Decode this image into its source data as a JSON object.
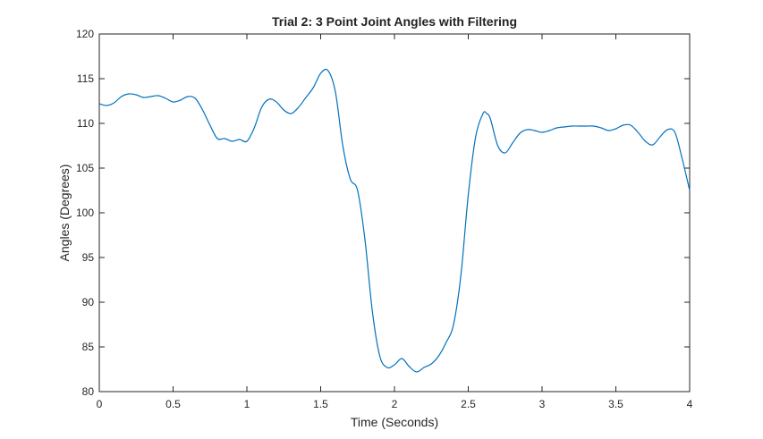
{
  "chart_data": {
    "type": "line",
    "title": "Trial 2: 3 Point Joint Angles with Filtering",
    "xlabel": "Time (Seconds)",
    "ylabel": "Angles (Degrees)",
    "xlim": [
      0,
      4
    ],
    "ylim": [
      80,
      120
    ],
    "xticks": [
      "0",
      "0.5",
      "1",
      "1.5",
      "2",
      "2.5",
      "3",
      "3.5",
      "4"
    ],
    "yticks": [
      "80",
      "85",
      "90",
      "95",
      "100",
      "105",
      "110",
      "115",
      "120"
    ],
    "grid": false,
    "series": [
      {
        "color": "#0072BD",
        "x": [
          0.0,
          0.05,
          0.1,
          0.15,
          0.2,
          0.25,
          0.3,
          0.35,
          0.4,
          0.45,
          0.5,
          0.55,
          0.6,
          0.65,
          0.7,
          0.75,
          0.8,
          0.85,
          0.9,
          0.95,
          1.0,
          1.05,
          1.1,
          1.15,
          1.2,
          1.25,
          1.3,
          1.35,
          1.4,
          1.45,
          1.5,
          1.55,
          1.6,
          1.65,
          1.7,
          1.75,
          1.8,
          1.85,
          1.9,
          1.95,
          2.0,
          2.05,
          2.1,
          2.15,
          2.2,
          2.25,
          2.3,
          2.35,
          2.4,
          2.45,
          2.5,
          2.55,
          2.6,
          2.625,
          2.65,
          2.7,
          2.75,
          2.8,
          2.85,
          2.9,
          2.95,
          3.0,
          3.05,
          3.1,
          3.15,
          3.2,
          3.25,
          3.3,
          3.35,
          3.4,
          3.45,
          3.5,
          3.55,
          3.6,
          3.65,
          3.7,
          3.75,
          3.8,
          3.85,
          3.9,
          3.95,
          4.0
        ],
        "y": [
          112.2,
          112.0,
          112.3,
          113.0,
          113.3,
          113.2,
          112.9,
          113.0,
          113.1,
          112.8,
          112.4,
          112.6,
          113.0,
          112.8,
          111.5,
          109.8,
          108.3,
          108.3,
          108.0,
          108.2,
          108.0,
          109.5,
          111.8,
          112.7,
          112.4,
          111.5,
          111.1,
          111.8,
          112.9,
          114.0,
          115.6,
          115.9,
          113.5,
          107.5,
          103.8,
          102.5,
          97.0,
          89.0,
          84.0,
          82.7,
          83.0,
          83.7,
          82.8,
          82.2,
          82.7,
          83.1,
          84.0,
          85.5,
          87.5,
          93.0,
          102.0,
          108.5,
          111.1,
          111.1,
          110.5,
          107.5,
          106.7,
          107.8,
          108.9,
          109.3,
          109.2,
          109.0,
          109.2,
          109.5,
          109.6,
          109.7,
          109.7,
          109.7,
          109.7,
          109.5,
          109.2,
          109.4,
          109.8,
          109.8,
          109.0,
          108.0,
          107.6,
          108.5,
          109.3,
          109.0,
          106.0,
          102.5
        ]
      }
    ]
  }
}
